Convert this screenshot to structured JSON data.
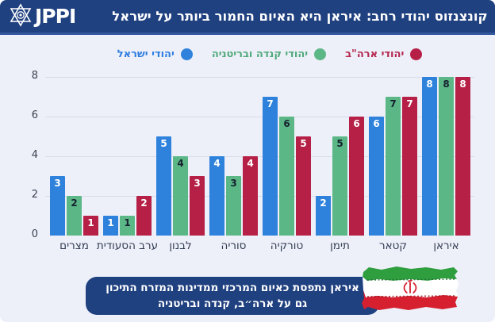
{
  "header": {
    "logo_text": "JPPI",
    "logo_icon": "star-of-david-icon",
    "title": "קונצנזוס יהודי רחב: איראן היא האיום החמור ביותר על ישראל"
  },
  "legend": {
    "items": [
      {
        "label": "יהודי ארה\"ב",
        "dot_color": "#b62047",
        "text_color": "#b5244c"
      },
      {
        "label": "יהודי קנדה ובריטניה",
        "dot_color": "#5cb787",
        "text_color": "#4fa97a"
      },
      {
        "label": "יהודי ישראל",
        "dot_color": "#2e82dc",
        "text_color": "#2e7de0"
      }
    ]
  },
  "chart_data": {
    "type": "bar",
    "title": "קונצנזוס יהודי רחב: איראן היא האיום החמור ביותר על ישראל",
    "categories": [
      "מצרים",
      "ערב הסעודית",
      "לבנון",
      "סוריה",
      "טורקיה",
      "תימן",
      "קטאר",
      "איראן"
    ],
    "series": [
      {
        "name": "יהודי ישראל",
        "color": "#2e82dc",
        "label_color": "#ffffff",
        "values": [
          3,
          1,
          5,
          4,
          7,
          2,
          6,
          8
        ]
      },
      {
        "name": "יהודי קנדה ובריטניה",
        "color": "#5cb787",
        "label_color": "#16212f",
        "values": [
          2,
          1,
          4,
          3,
          6,
          5,
          7,
          8
        ]
      },
      {
        "name": "יהודי ארה\"ב",
        "color": "#b62047",
        "label_color": "#ffffff",
        "values": [
          1,
          2,
          3,
          4,
          5,
          6,
          7,
          8
        ]
      }
    ],
    "yticks": [
      0,
      2,
      4,
      6,
      8
    ],
    "ylim": [
      0,
      8
    ],
    "grid": true,
    "legend_position": "top",
    "rtl": true,
    "bar_order_note": "within each category, bars left-to-right: Israel (blue), Canada/UK (green), US (red)"
  },
  "caption": {
    "line1": "איראן נתפסת כאיום המרכזי ממדינות המזרח התיכון",
    "line2": "גם על ארה״ב, קנדה ובריטניה"
  },
  "flag": {
    "name": "iran-flag",
    "colors": {
      "green": "#2f9e3f",
      "white": "#ffffff",
      "red": "#d6202f",
      "emblem": "#d6202f"
    }
  }
}
